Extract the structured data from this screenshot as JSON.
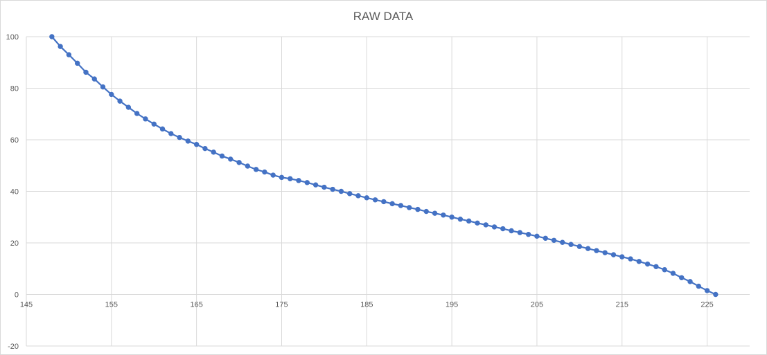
{
  "chart_data": {
    "type": "scatter",
    "mode": "lines+markers",
    "title": "RAW DATA",
    "xlabel": "",
    "ylabel": "",
    "xlim": [
      145,
      230
    ],
    "ylim": [
      -20,
      100
    ],
    "x_ticks": [
      145,
      155,
      165,
      175,
      185,
      195,
      205,
      215,
      225
    ],
    "y_ticks": [
      100,
      80,
      60,
      40,
      20,
      0,
      -20
    ],
    "grid": true,
    "legend": "none",
    "colors": {
      "series": "#4472c4",
      "grid": "#d9d9d9",
      "text": "#595959"
    },
    "series": [
      {
        "x": [
          148,
          149,
          150,
          151,
          152,
          153,
          154,
          155,
          156,
          157,
          158,
          159,
          160,
          161,
          162,
          163,
          164,
          165,
          166,
          167,
          168,
          169,
          170,
          171,
          172,
          173,
          174,
          175,
          176,
          177,
          178,
          179,
          180,
          181,
          182,
          183,
          184,
          185,
          186,
          187,
          188,
          189,
          190,
          191,
          192,
          193,
          194,
          195,
          196,
          197,
          198,
          199,
          200,
          201,
          202,
          203,
          204,
          205,
          206,
          207,
          208,
          209,
          210,
          211,
          212,
          213,
          214,
          215,
          216,
          217,
          218,
          219,
          220,
          221,
          222,
          223,
          224,
          225,
          226
        ],
        "y": [
          100,
          96.2,
          93,
          89.7,
          86.2,
          83.6,
          80.5,
          77.6,
          75,
          72.6,
          70.2,
          68.1,
          66.1,
          64.2,
          62.4,
          60.9,
          59.5,
          58.2,
          56.6,
          55.2,
          53.7,
          52.5,
          51.2,
          49.8,
          48.5,
          47.5,
          46.3,
          45.4,
          44.9,
          44.2,
          43.4,
          42.5,
          41.6,
          40.8,
          40,
          39.1,
          38.3,
          37.5,
          36.7,
          36,
          35.2,
          34.5,
          33.7,
          33,
          32.2,
          31.5,
          30.8,
          30,
          29.2,
          28.5,
          27.7,
          27,
          26.2,
          25.5,
          24.7,
          24,
          23.3,
          22.6,
          21.8,
          21,
          20.2,
          19.4,
          18.6,
          17.8,
          17,
          16.2,
          15.4,
          14.6,
          13.8,
          12.8,
          11.8,
          10.8,
          9.6,
          8.2,
          6.5,
          5,
          3.2,
          1.5,
          0
        ]
      }
    ]
  }
}
